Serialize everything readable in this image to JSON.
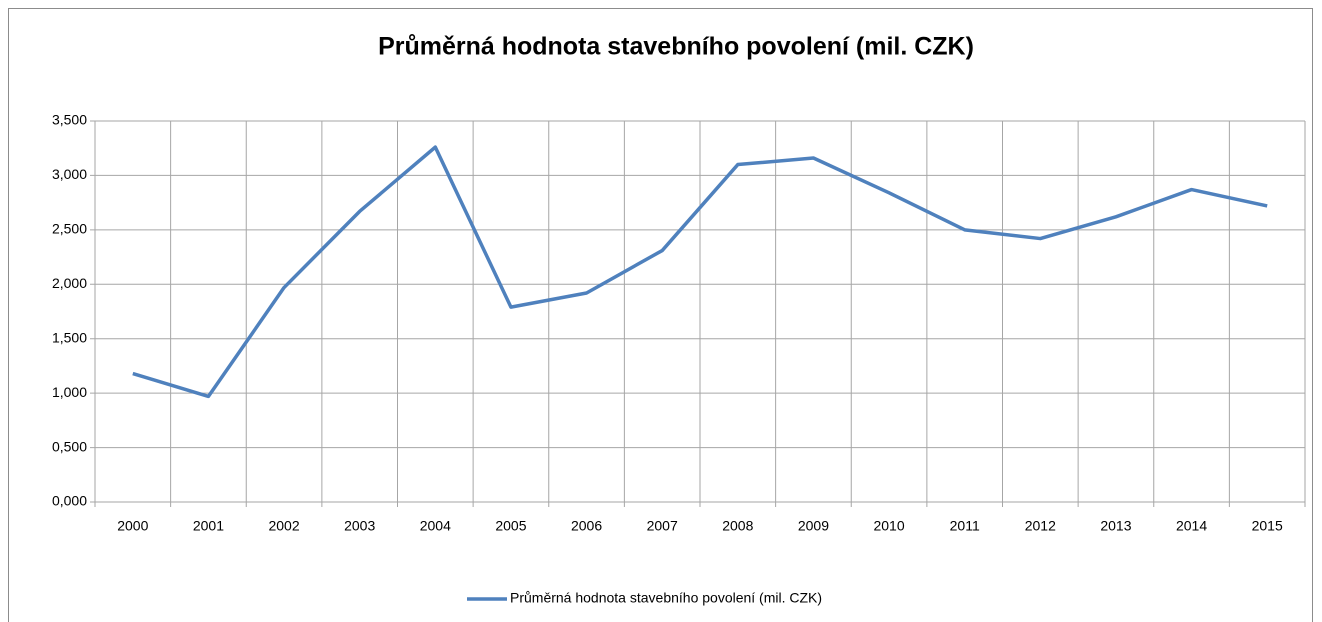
{
  "chart_data": {
    "type": "line",
    "title": "Průměrná hodnota stavebního povolení (mil. CZK)",
    "categories": [
      "2000",
      "2001",
      "2002",
      "2003",
      "2004",
      "2005",
      "2006",
      "2007",
      "2008",
      "2009",
      "2010",
      "2011",
      "2012",
      "2013",
      "2014",
      "2015"
    ],
    "series": [
      {
        "name": "Průměrná hodnota stavebního povolení (mil. CZK)",
        "color": "#4f81bd",
        "values": [
          1.18,
          0.97,
          1.97,
          2.67,
          3.26,
          1.79,
          1.92,
          2.31,
          3.1,
          3.16,
          2.84,
          2.5,
          2.42,
          2.62,
          2.87,
          2.72
        ]
      }
    ],
    "ylim": [
      0,
      3.5
    ],
    "yticks": [
      {
        "value": 0,
        "label": "0,000"
      },
      {
        "value": 0.5,
        "label": "0,500"
      },
      {
        "value": 1,
        "label": "1,000"
      },
      {
        "value": 1.5,
        "label": "1,500"
      },
      {
        "value": 2,
        "label": "2,000"
      },
      {
        "value": 2.5,
        "label": "2,500"
      },
      {
        "value": 3,
        "label": "3,000"
      },
      {
        "value": 3.5,
        "label": "3,500"
      }
    ],
    "grid": true,
    "legend": "bottom"
  }
}
